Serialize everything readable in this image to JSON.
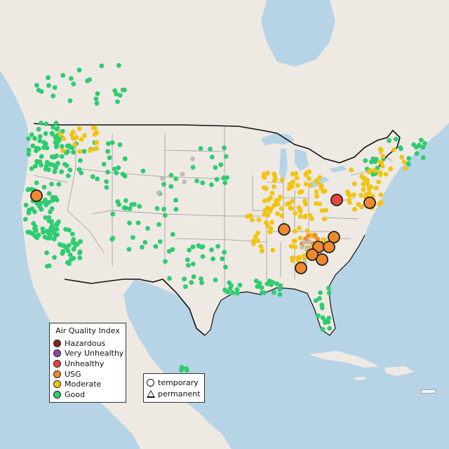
{
  "colors": {
    "water": "#b7d3e6",
    "land": "#efe9e4",
    "land_shade": "#e2ddd8",
    "state_line": "#9a9a9a",
    "border_line": "#111111",
    "hazardous": "#7e2b20",
    "very_unhealthy": "#8d4aa0",
    "unhealthy": "#e8463a",
    "usg": "#ee8a2c",
    "moderate": "#f2c40f",
    "good": "#2ecc71",
    "no_data": "#bdbdbd"
  },
  "legend": {
    "title": "Air Quality Index",
    "categories": [
      {
        "label": "Hazardous",
        "color_key": "hazardous"
      },
      {
        "label": "Very Unhealthy",
        "color_key": "very_unhealthy"
      },
      {
        "label": "Unhealthy",
        "color_key": "unhealthy"
      },
      {
        "label": "USG",
        "color_key": "usg"
      },
      {
        "label": "Moderate",
        "color_key": "moderate"
      },
      {
        "label": "Good",
        "color_key": "good"
      }
    ]
  },
  "monitor_legend": {
    "items": [
      {
        "label": "temporary",
        "shape": "circle"
      },
      {
        "label": "permanent",
        "shape": "triangle"
      }
    ]
  },
  "highlighted_monitors": [
    {
      "category": "usg"
    },
    {
      "category": "unhealthy"
    },
    {
      "category": "usg"
    },
    {
      "category": "usg"
    },
    {
      "category": "usg"
    },
    {
      "category": "usg"
    },
    {
      "category": "usg"
    },
    {
      "category": "usg"
    },
    {
      "category": "usg"
    },
    {
      "category": "usg"
    }
  ]
}
